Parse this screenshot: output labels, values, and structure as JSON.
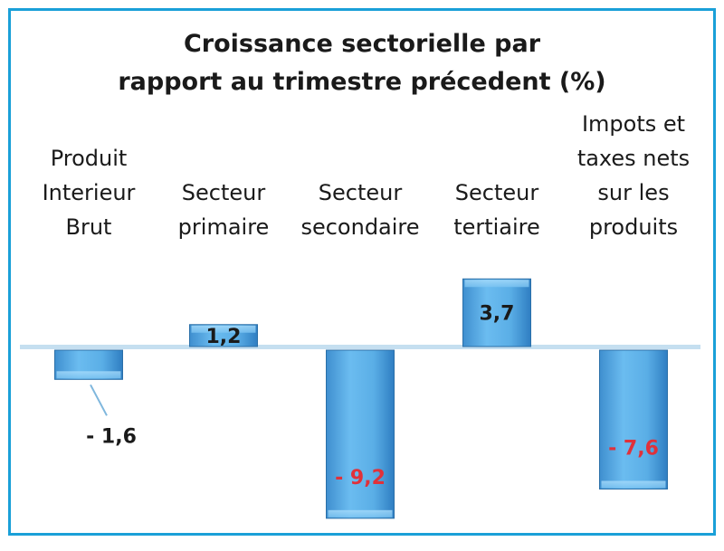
{
  "chart_data": {
    "type": "bar",
    "title_lines": [
      "Croissance sectorielle par",
      "rapport au trimestre précedent (%)"
    ],
    "categories": [
      [
        "Produit",
        "Interieur",
        "Brut"
      ],
      [
        "Secteur",
        "primaire"
      ],
      [
        "Secteur",
        "secondaire"
      ],
      [
        "Secteur",
        "tertiaire"
      ],
      [
        "Impots et",
        "taxes nets",
        "sur les",
        "produits"
      ]
    ],
    "values": [
      -1.6,
      1.2,
      -9.2,
      3.7,
      -7.6
    ],
    "data_labels": [
      "- 1,6",
      "1,2",
      "- 9,2",
      "3,7",
      "- 7,6"
    ],
    "label_colors": [
      "#1a1a1a",
      "#1a1a1a",
      "#e0313a",
      "#1a1a1a",
      "#e0313a"
    ],
    "bar_color": "#5aaee6",
    "baseline_color": "#c5dff0",
    "frame_color": "#1aa0d8",
    "grid": false,
    "legend": "none"
  }
}
